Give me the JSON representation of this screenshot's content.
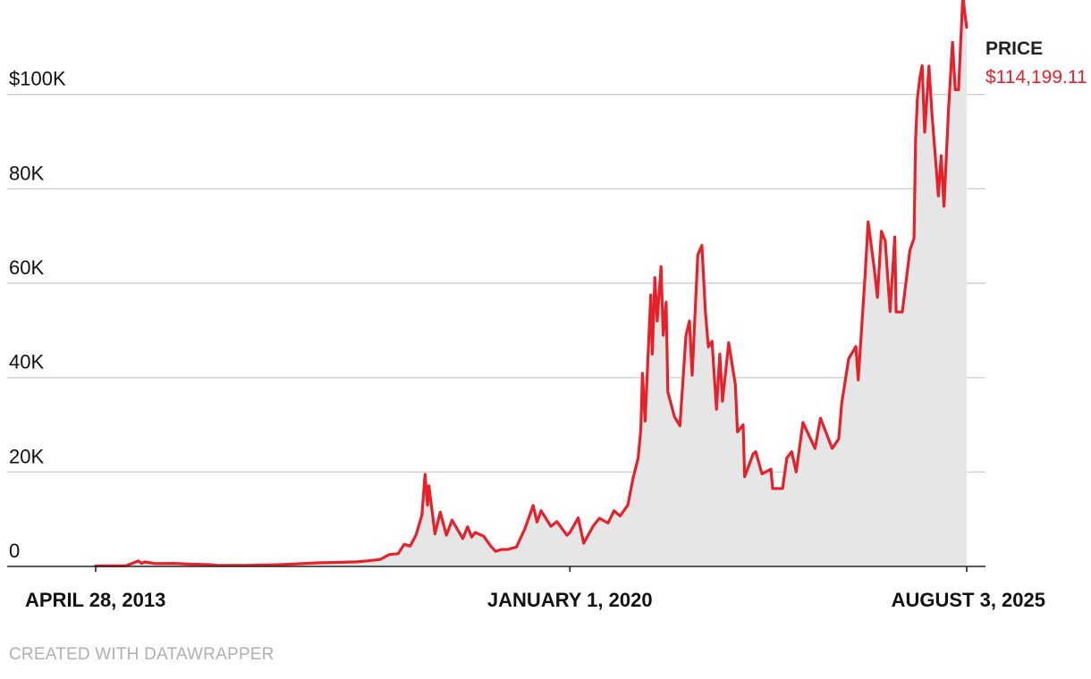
{
  "chart_data": {
    "type": "area",
    "x_scale": "time",
    "ylim": [
      0,
      120000
    ],
    "y_ticks": [
      {
        "value": 0,
        "label": "0"
      },
      {
        "value": 20000,
        "label": "20K"
      },
      {
        "value": 40000,
        "label": "40K"
      },
      {
        "value": 60000,
        "label": "60K"
      },
      {
        "value": 80000,
        "label": "80K"
      },
      {
        "value": 100000,
        "label": "$100K"
      }
    ],
    "x_ticks": [
      {
        "date": "2013-04-28",
        "label": "APRIL 28, 2013"
      },
      {
        "date": "2020-01-01",
        "label": "JANUARY 1, 2020"
      },
      {
        "date": "2025-08-03",
        "label": "AUGUST 3, 2025"
      }
    ],
    "grid": true,
    "series": [
      {
        "name": "PRICE",
        "color": "#e8202a",
        "fill": "#e6e6e6",
        "end_label": "$114,199.11",
        "points": [
          [
            "2013-04-28",
            135
          ],
          [
            "2013-10-01",
            125
          ],
          [
            "2013-12-04",
            1150
          ],
          [
            "2013-12-20",
            650
          ],
          [
            "2014-01-05",
            950
          ],
          [
            "2014-03-01",
            600
          ],
          [
            "2014-06-01",
            650
          ],
          [
            "2014-09-01",
            480
          ],
          [
            "2014-12-01",
            370
          ],
          [
            "2015-01-15",
            210
          ],
          [
            "2015-06-01",
            230
          ],
          [
            "2015-11-01",
            350
          ],
          [
            "2016-01-01",
            430
          ],
          [
            "2016-06-15",
            750
          ],
          [
            "2016-12-31",
            960
          ],
          [
            "2017-03-01",
            1200
          ],
          [
            "2017-05-01",
            1500
          ],
          [
            "2017-06-15",
            2500
          ],
          [
            "2017-08-01",
            2700
          ],
          [
            "2017-09-01",
            4700
          ],
          [
            "2017-10-01",
            4300
          ],
          [
            "2017-11-01",
            6700
          ],
          [
            "2017-12-01",
            10900
          ],
          [
            "2017-12-17",
            19500
          ],
          [
            "2017-12-30",
            13000
          ],
          [
            "2018-01-06",
            17100
          ],
          [
            "2018-02-06",
            6900
          ],
          [
            "2018-03-05",
            11500
          ],
          [
            "2018-04-06",
            6600
          ],
          [
            "2018-05-05",
            9800
          ],
          [
            "2018-06-29",
            5900
          ],
          [
            "2018-07-24",
            8400
          ],
          [
            "2018-08-14",
            6200
          ],
          [
            "2018-09-01",
            7200
          ],
          [
            "2018-10-15",
            6400
          ],
          [
            "2018-11-20",
            4300
          ],
          [
            "2018-12-15",
            3200
          ],
          [
            "2019-01-15",
            3600
          ],
          [
            "2019-02-15",
            3600
          ],
          [
            "2019-04-01",
            4100
          ],
          [
            "2019-05-15",
            8000
          ],
          [
            "2019-06-26",
            12900
          ],
          [
            "2019-07-16",
            9400
          ],
          [
            "2019-08-06",
            11800
          ],
          [
            "2019-09-25",
            8500
          ],
          [
            "2019-10-26",
            9500
          ],
          [
            "2019-12-17",
            6600
          ],
          [
            "2020-01-01",
            7200
          ],
          [
            "2020-02-13",
            10300
          ],
          [
            "2020-03-12",
            4900
          ],
          [
            "2020-04-30",
            8600
          ],
          [
            "2020-06-01",
            10200
          ],
          [
            "2020-07-15",
            9200
          ],
          [
            "2020-08-15",
            11800
          ],
          [
            "2020-09-15",
            10700
          ],
          [
            "2020-10-25",
            13000
          ],
          [
            "2020-11-20",
            18500
          ],
          [
            "2020-12-17",
            23000
          ],
          [
            "2020-12-31",
            29000
          ],
          [
            "2021-01-08",
            40900
          ],
          [
            "2021-01-22",
            30800
          ],
          [
            "2021-02-20",
            57500
          ],
          [
            "2021-02-28",
            45000
          ],
          [
            "2021-03-13",
            61200
          ],
          [
            "2021-03-25",
            52000
          ],
          [
            "2021-04-14",
            63500
          ],
          [
            "2021-04-25",
            49000
          ],
          [
            "2021-05-10",
            56000
          ],
          [
            "2021-05-19",
            37000
          ],
          [
            "2021-06-22",
            31700
          ],
          [
            "2021-07-20",
            29800
          ],
          [
            "2021-08-20",
            49000
          ],
          [
            "2021-09-07",
            52000
          ],
          [
            "2021-09-21",
            40500
          ],
          [
            "2021-10-20",
            66000
          ],
          [
            "2021-11-10",
            68000
          ],
          [
            "2021-11-28",
            54000
          ],
          [
            "2021-12-13",
            46500
          ],
          [
            "2022-01-01",
            47700
          ],
          [
            "2022-01-24",
            33300
          ],
          [
            "2022-02-10",
            45000
          ],
          [
            "2022-02-24",
            35000
          ],
          [
            "2022-03-28",
            47400
          ],
          [
            "2022-05-01",
            38500
          ],
          [
            "2022-05-12",
            28500
          ],
          [
            "2022-06-10",
            30000
          ],
          [
            "2022-06-18",
            19000
          ],
          [
            "2022-07-31",
            23800
          ],
          [
            "2022-08-14",
            24300
          ],
          [
            "2022-09-15",
            19600
          ],
          [
            "2022-10-31",
            20600
          ],
          [
            "2022-11-09",
            16500
          ],
          [
            "2022-12-30",
            16500
          ],
          [
            "2023-01-21",
            23000
          ],
          [
            "2023-02-15",
            24300
          ],
          [
            "2023-03-10",
            20000
          ],
          [
            "2023-04-14",
            30500
          ],
          [
            "2023-06-15",
            25000
          ],
          [
            "2023-07-13",
            31400
          ],
          [
            "2023-09-11",
            25000
          ],
          [
            "2023-10-15",
            27000
          ],
          [
            "2023-10-30",
            34500
          ],
          [
            "2023-12-05",
            44000
          ],
          [
            "2024-01-11",
            46600
          ],
          [
            "2024-01-23",
            39500
          ],
          [
            "2024-02-28",
            62000
          ],
          [
            "2024-03-14",
            73000
          ],
          [
            "2024-04-15",
            63000
          ],
          [
            "2024-05-01",
            57000
          ],
          [
            "2024-05-21",
            71000
          ],
          [
            "2024-06-10",
            69000
          ],
          [
            "2024-07-05",
            54000
          ],
          [
            "2024-07-29",
            69800
          ],
          [
            "2024-08-05",
            53900
          ],
          [
            "2024-09-06",
            53900
          ],
          [
            "2024-10-15",
            67000
          ],
          [
            "2024-11-05",
            69500
          ],
          [
            "2024-11-13",
            90000
          ],
          [
            "2024-11-22",
            99000
          ],
          [
            "2024-12-05",
            103500
          ],
          [
            "2024-12-17",
            106100
          ],
          [
            "2024-12-30",
            92000
          ],
          [
            "2025-01-21",
            106000
          ],
          [
            "2025-02-05",
            96000
          ],
          [
            "2025-02-28",
            84000
          ],
          [
            "2025-03-10",
            78500
          ],
          [
            "2025-03-25",
            87000
          ],
          [
            "2025-04-08",
            76300
          ],
          [
            "2025-05-01",
            96500
          ],
          [
            "2025-05-22",
            111000
          ],
          [
            "2025-06-05",
            101000
          ],
          [
            "2025-06-22",
            101000
          ],
          [
            "2025-07-14",
            121000
          ],
          [
            "2025-07-25",
            117000
          ],
          [
            "2025-08-03",
            114199.11
          ]
        ]
      }
    ]
  },
  "credit": "CREATED WITH DATAWRAPPER"
}
